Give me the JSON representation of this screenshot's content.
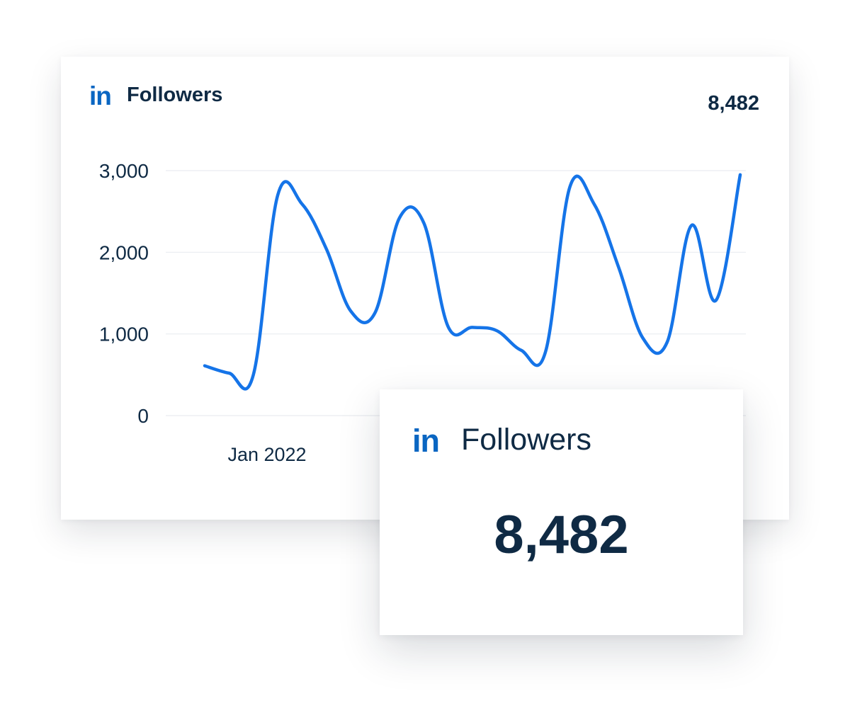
{
  "chart_card": {
    "logo_text": "in",
    "title": "Followers",
    "total": "8,482"
  },
  "stat_card": {
    "logo_text": "in",
    "title": "Followers",
    "value": "8,482"
  },
  "colors": {
    "line": "#1574e8",
    "brand": "#0a66c2",
    "text": "#0f2a44",
    "grid": "#e9ecf0"
  },
  "chart_data": {
    "type": "line",
    "title": "Followers",
    "xlabel": "",
    "ylabel": "",
    "ylim": [
      0,
      3000
    ],
    "y_ticks": [
      0,
      1000,
      2000,
      3000
    ],
    "y_tick_labels": [
      "0",
      "1,000",
      "2,000",
      "3,000"
    ],
    "x_tick_labels": [
      "Jan 2022"
    ],
    "grid": true,
    "legend": "none",
    "series": [
      {
        "values": [
          610,
          520,
          500,
          2700,
          2590,
          2040,
          1280,
          1260,
          2420,
          2360,
          1090,
          1080,
          1040,
          800,
          780,
          2800,
          2590,
          1820,
          950,
          900,
          2330,
          1410,
          2950
        ]
      }
    ]
  }
}
